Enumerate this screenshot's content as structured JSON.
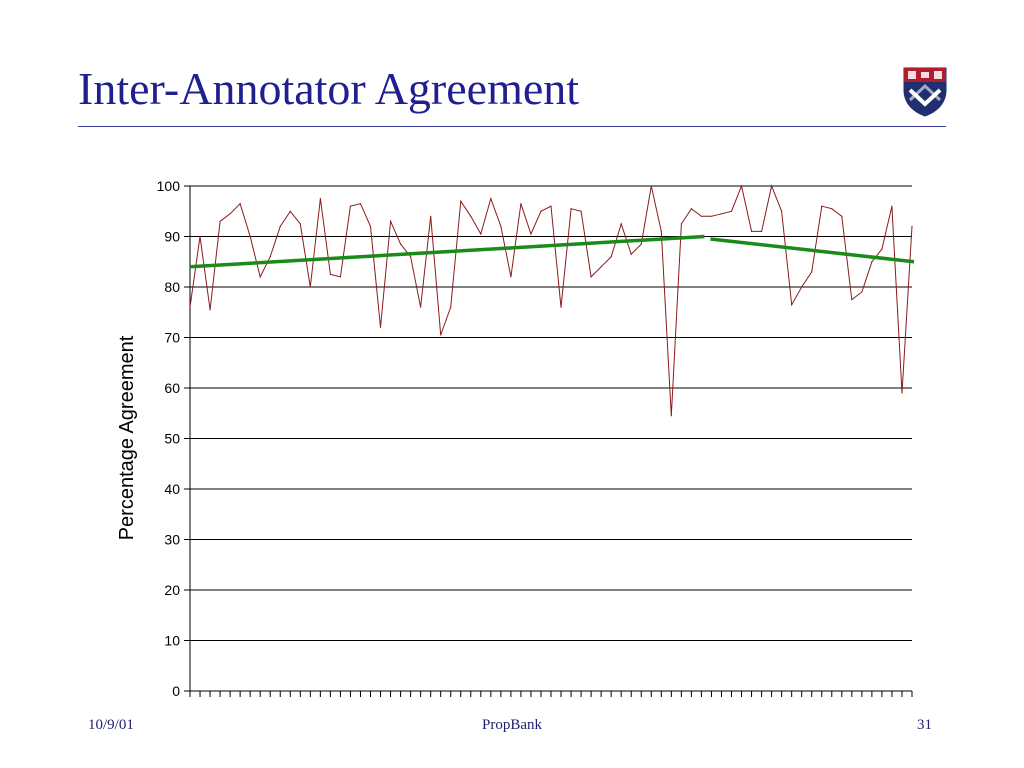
{
  "slide": {
    "title": "Inter-Annotator Agreement",
    "footer_date": "10/9/01",
    "footer_center": "PropBank",
    "page_number": "31"
  },
  "colors": {
    "title": "#1f1f8f",
    "series": "#8b1a1a",
    "trend": "#1a8a1a",
    "gridline": "#000000"
  },
  "chart_data": {
    "type": "line",
    "ylabel": "Percentage Agreement",
    "xlabel": "",
    "ylim": [
      0,
      100
    ],
    "yticks": [
      0,
      10,
      20,
      30,
      40,
      50,
      60,
      70,
      80,
      90,
      100
    ],
    "grid": true,
    "x_count": 73,
    "series": [
      {
        "values": [
          76,
          90,
          75.5,
          93,
          94.5,
          96.5,
          90,
          82,
          86,
          92,
          95,
          92.5,
          80,
          97.5,
          82.5,
          82,
          96,
          96.5,
          92,
          72,
          93,
          88.5,
          86,
          76,
          94,
          70.5,
          76,
          97,
          94,
          90.5,
          97.5,
          92,
          82,
          96.5,
          90.5,
          95,
          96,
          76,
          95.5,
          95,
          82,
          84,
          86,
          92.5,
          86.5,
          88.5,
          100,
          91,
          54.5,
          92.5,
          95.5,
          94,
          94,
          94.5,
          95,
          100,
          91,
          91,
          100,
          95,
          76.5,
          80,
          83,
          96,
          95.5,
          94,
          77.5,
          79,
          85,
          87.5,
          96,
          59,
          92
        ]
      }
    ],
    "trend_lines": [
      {
        "start": [
          0,
          84
        ],
        "end": [
          51.3,
          90
        ]
      },
      {
        "start": [
          51.9,
          89.5
        ],
        "end": [
          72.2,
          85
        ]
      }
    ]
  }
}
